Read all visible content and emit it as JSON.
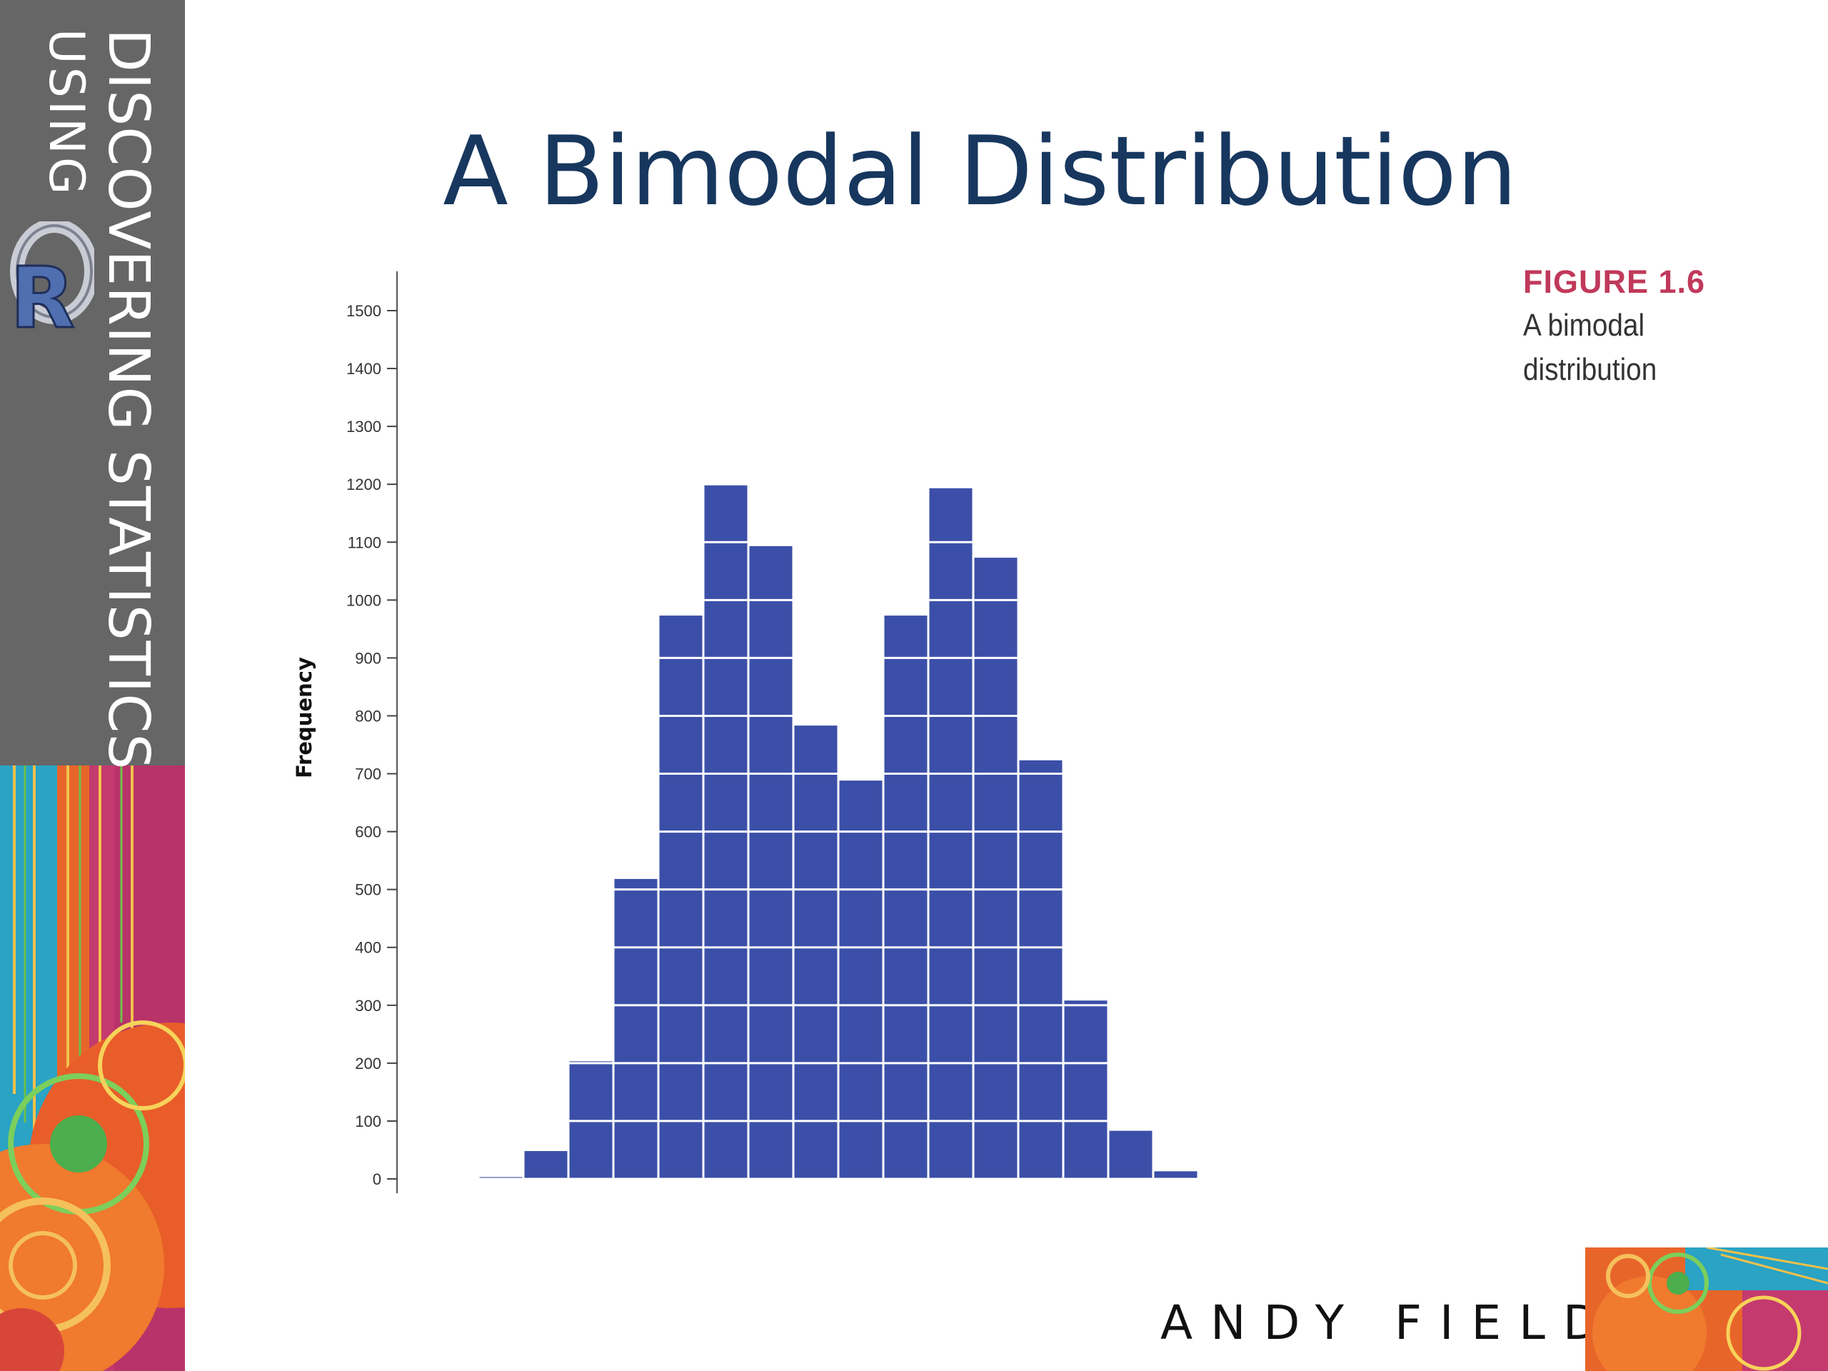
{
  "brand": {
    "line1": "DISCOVERING STATISTICS",
    "line2": "USING",
    "logo_letter": "R"
  },
  "slide": {
    "title": "A Bimodal Distribution"
  },
  "figure": {
    "label": "FIGURE 1.6",
    "caption": "A bimodal distribution"
  },
  "author": "ANDY FIELD",
  "colors": {
    "bar": "#3b4fa8",
    "title": "#17375e",
    "figure_label": "#c0395a",
    "sidebar_gray": "#666666"
  },
  "chart_data": {
    "type": "bar",
    "title": "",
    "xlabel": "",
    "ylabel": "Frequency",
    "ylim": [
      0,
      1500
    ],
    "yticks": [
      0,
      100,
      200,
      300,
      400,
      500,
      600,
      700,
      800,
      900,
      1000,
      1100,
      1200,
      1300,
      1400,
      1500
    ],
    "grid": false,
    "values": [
      5,
      50,
      205,
      520,
      975,
      1200,
      1095,
      785,
      690,
      975,
      1195,
      1075,
      725,
      310,
      85,
      15
    ]
  }
}
